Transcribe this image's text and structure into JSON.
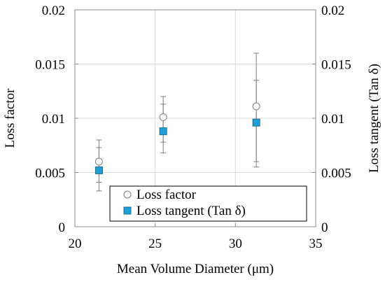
{
  "chart_data": {
    "type": "scatter",
    "xlabel": "Mean Volume Diameter (μm)",
    "ylabel": "Loss factor",
    "y2label": "Loss tangent (Tan δ)",
    "xlim": [
      20,
      35
    ],
    "ylim": [
      0,
      0.02
    ],
    "y2lim": [
      0,
      0.02
    ],
    "x_ticks": [
      "20",
      "25",
      "30",
      "35"
    ],
    "y_ticks": [
      "0",
      "0.005",
      "0.01",
      "0.015",
      "0.02"
    ],
    "y2_ticks": [
      "0",
      "0.005",
      "0.01",
      "0.015",
      "0.02"
    ],
    "grid": true,
    "legend_position": "bottom-center",
    "series": [
      {
        "name": "Loss factor",
        "marker": "circle-open",
        "color": "#808080",
        "x": [
          21.5,
          25.5,
          31.3
        ],
        "y": [
          0.006,
          0.0101,
          0.0111
        ],
        "err_low": [
          0.0041,
          0.0078,
          0.006
        ],
        "err_high": [
          0.0073,
          0.0113,
          0.0135
        ]
      },
      {
        "name": "Loss tangent (Tan δ)",
        "marker": "square-filled",
        "color": "#1f9fd6",
        "x": [
          21.5,
          25.5,
          31.3
        ],
        "y": [
          0.0052,
          0.0088,
          0.0096
        ],
        "err_low": [
          0.0033,
          0.0068,
          0.0055
        ],
        "err_high": [
          0.008,
          0.012,
          0.016
        ]
      }
    ]
  }
}
